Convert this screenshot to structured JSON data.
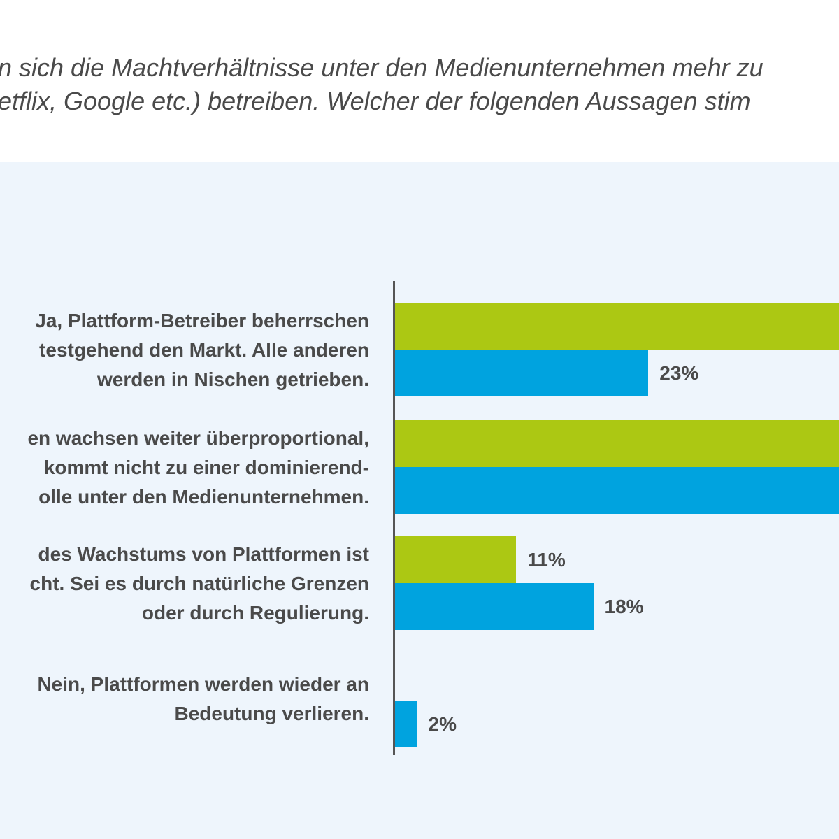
{
  "question": {
    "line1": "n sich die Machtverhältnisse unter den Medienunternehmen mehr zu",
    "line2": "etflix, Google etc.) betreiben. Welcher der folgenden Aussagen stim"
  },
  "colors": {
    "panel_background": "#eef5fc",
    "series_green": "#acc813",
    "series_blue": "#00a3df",
    "text": "#4a4a4a",
    "axis": "#555555"
  },
  "chart_data": {
    "type": "bar",
    "orientation": "horizontal",
    "categories": [
      [
        "Ja, Plattform-Betreiber beherrschen",
        "testgehend den Markt. Alle anderen",
        "werden in Nischen getrieben."
      ],
      [
        "en wachsen weiter überproportional,",
        "kommt nicht zu einer dominierend-",
        "olle unter den Medienunternehmen."
      ],
      [
        "des Wachstums von Plattformen ist",
        "cht. Sei es durch natürliche Grenzen",
        "oder durch Regulierung."
      ],
      [
        "Nein, Plattformen werden wieder an",
        "Bedeutung verlieren."
      ]
    ],
    "series": [
      {
        "color": "#acc813",
        "values": [
          null,
          null,
          11,
          0
        ],
        "labels": [
          "",
          "",
          "11%",
          ""
        ]
      },
      {
        "color": "#00a3df",
        "values": [
          23,
          null,
          18,
          2
        ],
        "labels": [
          "23%",
          "",
          "18%",
          "2%"
        ]
      }
    ],
    "note": "",
    "xlim": [
      0,
      35
    ]
  }
}
